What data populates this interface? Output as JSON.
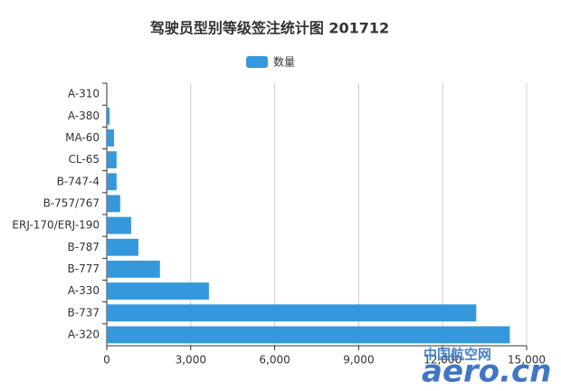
{
  "chart_data": {
    "type": "hbar",
    "title": "驾驶员型别等级签注统计图 201712",
    "categories": [
      "A-310",
      "A-380",
      "MA-60",
      "CL-65",
      "B-747-4",
      "B-757/767",
      "ERJ-170/ERJ-190",
      "B-787",
      "B-777",
      "A-330",
      "B-737",
      "A-320"
    ],
    "series": [
      {
        "name": "数量",
        "color": "#3598dc",
        "values": [
          30,
          100,
          260,
          350,
          350,
          480,
          870,
          1130,
          1900,
          3650,
          13200,
          14400
        ]
      }
    ],
    "xlim": [
      0,
      15000
    ],
    "xticks": [
      0,
      {
        "value": 3000,
        "label": "3,000"
      },
      {
        "value": 6000,
        "label": "6,000"
      },
      {
        "value": 9000,
        "label": "9,000"
      },
      {
        "value": 12000,
        "label": "12,000"
      },
      {
        "value": 15000,
        "label": "15,000"
      }
    ],
    "grid": true,
    "legend": "top",
    "watermark": [
      "中国航空网",
      "aero.cn"
    ]
  }
}
